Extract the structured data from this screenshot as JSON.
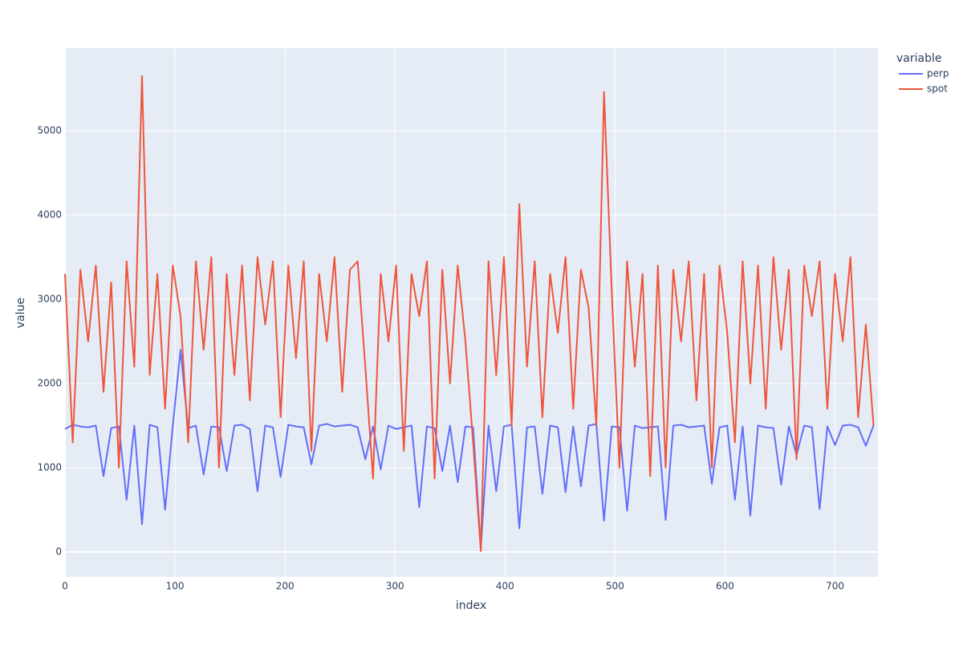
{
  "chart_data": {
    "type": "line",
    "x_label": "index",
    "y_label": "value",
    "legend_title": "variable",
    "x": [
      0,
      7,
      14,
      21,
      28,
      35,
      42,
      49,
      56,
      63,
      70,
      77,
      84,
      91,
      98,
      105,
      112,
      119,
      126,
      133,
      140,
      147,
      154,
      161,
      168,
      175,
      182,
      189,
      196,
      203,
      210,
      217,
      224,
      231,
      238,
      245,
      252,
      259,
      266,
      273,
      280,
      287,
      294,
      301,
      308,
      315,
      322,
      329,
      336,
      343,
      350,
      357,
      364,
      371,
      378,
      385,
      392,
      399,
      406,
      413,
      420,
      427,
      434,
      441,
      448,
      455,
      462,
      469,
      476,
      483,
      490,
      497,
      504,
      511,
      518,
      525,
      532,
      539,
      546,
      553,
      560,
      567,
      574,
      581,
      588,
      595,
      602,
      609,
      616,
      623,
      630,
      637,
      644,
      651,
      658,
      665,
      672,
      679,
      686,
      693,
      700,
      707,
      714,
      721,
      728,
      735
    ],
    "series": [
      {
        "name": "perp",
        "color": "#636efa",
        "values": [
          1460,
          1510,
          1490,
          1480,
          1500,
          900,
          1470,
          1490,
          620,
          1500,
          330,
          1510,
          1480,
          500,
          1500,
          2400,
          1470,
          1500,
          920,
          1490,
          1480,
          960,
          1500,
          1510,
          1460,
          720,
          1500,
          1480,
          890,
          1510,
          1490,
          1480,
          1040,
          1500,
          1520,
          1490,
          1500,
          1510,
          1480,
          1100,
          1490,
          980,
          1500,
          1460,
          1480,
          1500,
          530,
          1490,
          1470,
          960,
          1500,
          830,
          1490,
          1480,
          40,
          1500,
          720,
          1490,
          1510,
          280,
          1480,
          1490,
          690,
          1500,
          1480,
          710,
          1490,
          780,
          1500,
          1520,
          370,
          1490,
          1480,
          490,
          1500,
          1470,
          1480,
          1490,
          380,
          1500,
          1510,
          1480,
          1490,
          1500,
          810,
          1480,
          1500,
          620,
          1490,
          430,
          1500,
          1480,
          1470,
          800,
          1490,
          1150,
          1500,
          1480,
          510,
          1490,
          1270,
          1500,
          1510,
          1480,
          1260,
          1500
        ]
      },
      {
        "name": "spot",
        "color": "#EF553B",
        "values": [
          3300,
          1300,
          3350,
          2500,
          3400,
          1900,
          3200,
          1000,
          3450,
          2200,
          5650,
          2100,
          3300,
          1700,
          3400,
          2800,
          1300,
          3450,
          2400,
          3500,
          1000,
          3300,
          2100,
          3400,
          1800,
          3500,
          2700,
          3450,
          1600,
          3400,
          2300,
          3450,
          1200,
          3300,
          2500,
          3500,
          1900,
          3350,
          3450,
          2200,
          870,
          3300,
          2500,
          3400,
          1200,
          3300,
          2800,
          3450,
          870,
          3350,
          2000,
          3400,
          2500,
          1300,
          10,
          3450,
          2100,
          3500,
          1500,
          4130,
          2200,
          3450,
          1600,
          3300,
          2600,
          3500,
          1700,
          3350,
          2900,
          1500,
          5460,
          3100,
          1000,
          3450,
          2200,
          3300,
          900,
          3400,
          1000,
          3350,
          2500,
          3450,
          1800,
          3300,
          1000,
          3400,
          2600,
          1300,
          3450,
          2000,
          3400,
          1700,
          3500,
          2400,
          3350,
          1100,
          3400,
          2800,
          3450,
          1700,
          3300,
          2500,
          3500,
          1600,
          2700,
          1500
        ]
      }
    ],
    "xlim": [
      0,
      739
    ],
    "ylim": [
      -295,
      5981
    ],
    "xticks": [
      0,
      100,
      200,
      300,
      400,
      500,
      600,
      700
    ],
    "yticks": [
      0,
      1000,
      2000,
      3000,
      4000,
      5000
    ],
    "grid": true,
    "legend": "right"
  }
}
